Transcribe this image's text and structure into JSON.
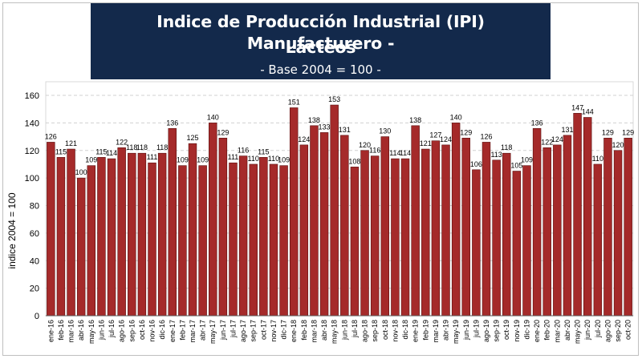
{
  "chart_data": {
    "type": "bar",
    "title_line1": "Indice de Producción Industrial (IPI) Manufacturero -",
    "title_line2": "Lácteos",
    "subtitle": "- Base 2004 = 100 -",
    "ylabel": "indice 2004 = 100",
    "xlabel": "",
    "ylim": [
      0,
      160
    ],
    "yticks": [
      0,
      20,
      40,
      60,
      80,
      100,
      120,
      140,
      160
    ],
    "grid": true,
    "bar_color": "#a52a2a",
    "categories": [
      "ene-16",
      "feb-16",
      "mar-16",
      "abr-16",
      "may-16",
      "jun-16",
      "jul-16",
      "ago-16",
      "sep-16",
      "oct-16",
      "nov-16",
      "dic-16",
      "ene-17",
      "feb-17",
      "mar-17",
      "abr-17",
      "may-17",
      "jun-17",
      "jul-17",
      "ago-17",
      "sep-17",
      "oct-17",
      "nov-17",
      "dic-17",
      "ene-18",
      "feb-18",
      "mar-18",
      "abr-18",
      "may-18",
      "jun-18",
      "jul-18",
      "ago-18",
      "sep-18",
      "oct-18",
      "nov-18",
      "dic-18",
      "ene-19",
      "feb-19",
      "mar-19",
      "abr-19",
      "may-19",
      "jun-19",
      "jul-19",
      "ago-19",
      "sep-19",
      "oct-19",
      "nov-19",
      "dic-19",
      "ene-20",
      "feb-20",
      "mar-20",
      "abr-20",
      "may-20",
      "jun-20",
      "jul-20",
      "ago-20",
      "sep-20",
      "oct-20"
    ],
    "values": [
      126,
      115,
      121,
      100,
      109,
      115,
      114,
      122,
      118,
      118,
      111,
      118,
      136,
      109,
      125,
      109,
      140,
      129,
      111,
      116,
      110,
      115,
      110,
      109,
      151,
      124,
      138,
      133,
      153,
      131,
      108,
      120,
      116,
      130,
      114,
      114,
      138,
      121,
      127,
      124,
      140,
      129,
      106,
      126,
      113,
      118,
      105,
      109,
      136,
      122,
      124,
      131,
      147,
      144,
      110,
      129,
      120,
      129
    ]
  }
}
